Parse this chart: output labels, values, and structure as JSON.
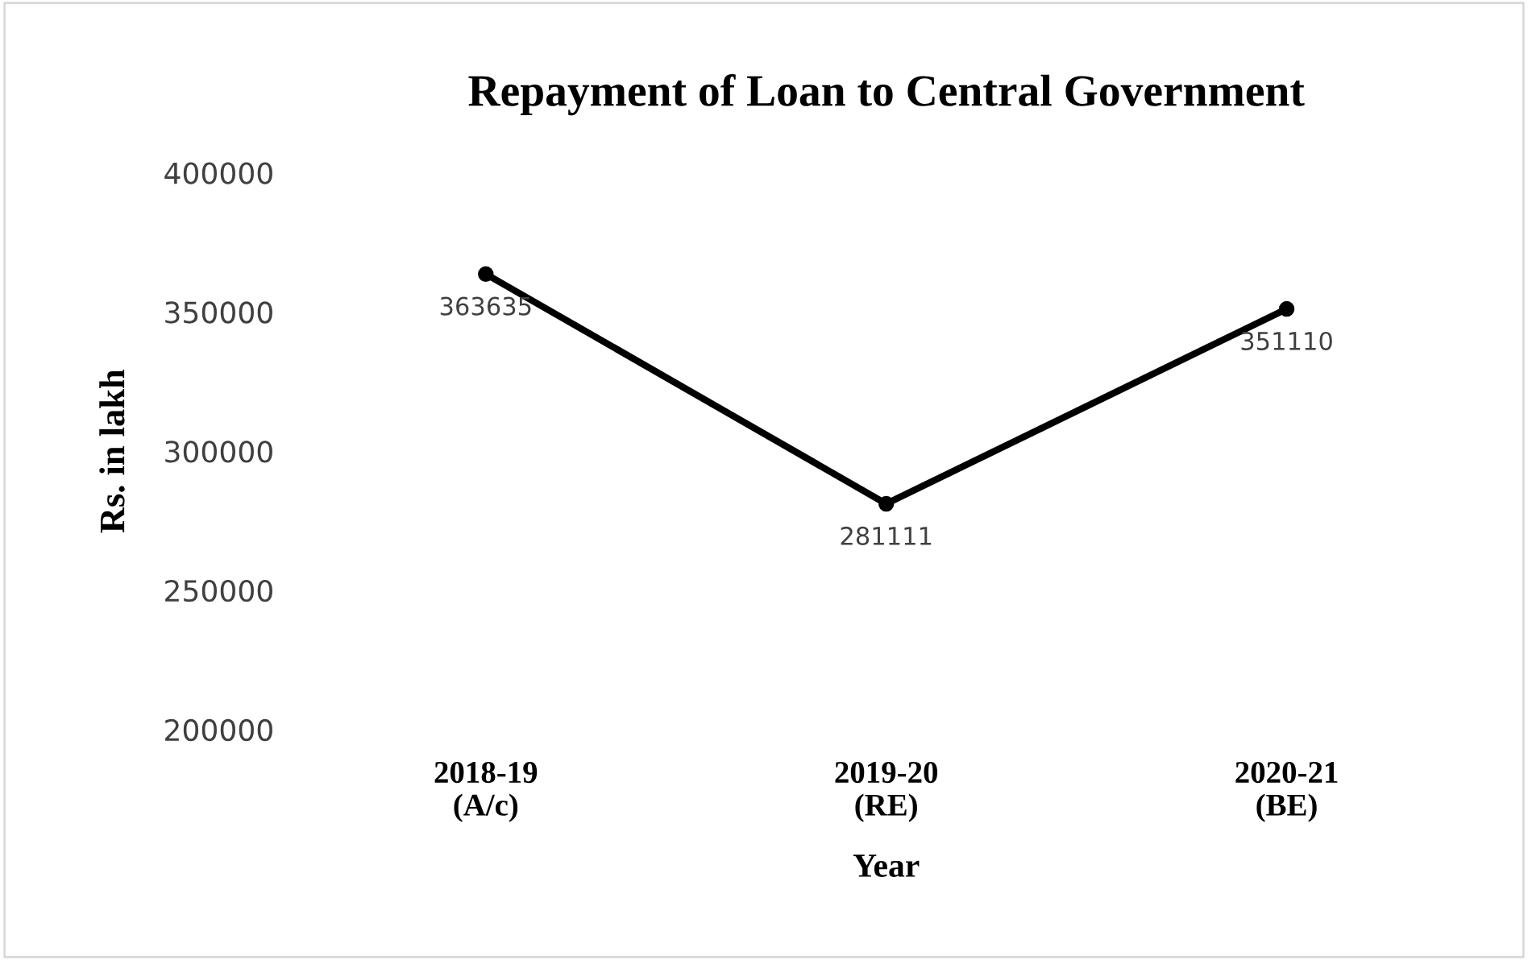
{
  "chart_data": {
    "type": "line",
    "title": "Repayment of Loan to Central Government",
    "xlabel": "Year",
    "ylabel": "Rs. in lakh",
    "categories": [
      "2018-19\n(A/c)",
      "2019-20\n(RE)",
      "2020-21\n(BE)"
    ],
    "series": [
      {
        "color": "#000000",
        "values": [
          363635,
          281111,
          351110
        ]
      }
    ],
    "ylim": [
      200000,
      400000
    ],
    "yticks": [
      200000,
      250000,
      300000,
      350000,
      400000
    ],
    "grid": false,
    "marker": "circle",
    "line_style": "solid",
    "data_labels": true
  }
}
